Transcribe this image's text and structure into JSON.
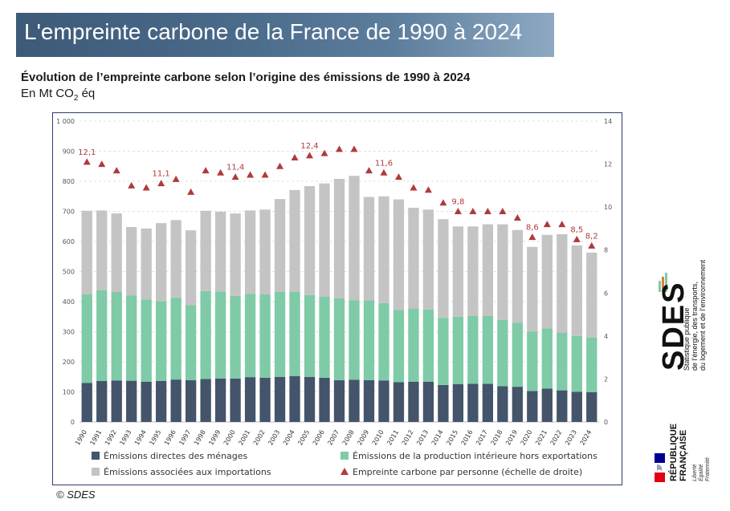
{
  "header": {
    "banner_title": "L'empreinte carbone de la France de 1990 à 2024",
    "subtitle": "Évolution de l’empreinte carbone selon l’origine des émissions de 1990 à 2024",
    "unit_prefix": "En Mt CO",
    "unit_sub": "2",
    "unit_suffix": " éq"
  },
  "credit": "© SDES",
  "logos": {
    "sdes_text": "SDES",
    "sdes_caption": [
      "Statistique publique",
      "de l’énergie, des transports,",
      "du logement et de l’environnement"
    ],
    "rf_text": [
      "RÉPUBLIQUE",
      "FRANÇAISE"
    ],
    "rf_motto": [
      "Liberté",
      "Égalité",
      "Fraternité"
    ]
  },
  "colors": {
    "menages": "#44546a",
    "production": "#7fcaa7",
    "importations": "#c4c4c4",
    "per_capita": "#b03a3a"
  },
  "chart_data": {
    "type": "bar",
    "stacked": true,
    "categories": [
      "1990",
      "1991",
      "1992",
      "1993",
      "1994",
      "1995",
      "1996",
      "1997",
      "1998",
      "1999",
      "2000",
      "2001",
      "2002",
      "2003",
      "2004",
      "2005",
      "2006",
      "2007",
      "2008",
      "2009",
      "2010",
      "2011",
      "2012",
      "2013",
      "2014",
      "2015",
      "2016",
      "2017",
      "2018",
      "2019",
      "2020",
      "2021",
      "2022",
      "2023",
      "2024"
    ],
    "series": [
      {
        "name": "Émissions directes des ménages",
        "color_key": "menages",
        "values": [
          130,
          136,
          138,
          137,
          134,
          136,
          141,
          139,
          143,
          144,
          144,
          149,
          147,
          150,
          152,
          150,
          147,
          139,
          140,
          139,
          138,
          132,
          134,
          134,
          123,
          126,
          127,
          127,
          119,
          117,
          103,
          111,
          105,
          100,
          99
        ]
      },
      {
        "name": "Émissions de la production intérieure hors exportations",
        "color_key": "production",
        "values": [
          295,
          302,
          294,
          283,
          273,
          266,
          272,
          249,
          292,
          290,
          275,
          277,
          277,
          283,
          280,
          272,
          270,
          272,
          265,
          266,
          257,
          240,
          242,
          240,
          223,
          224,
          225,
          226,
          220,
          213,
          197,
          200,
          191,
          186,
          182
        ]
      },
      {
        "name": "Émissions associées aux importations",
        "color_key": "importations",
        "values": [
          277,
          265,
          261,
          228,
          236,
          259,
          258,
          249,
          267,
          265,
          274,
          277,
          282,
          308,
          339,
          362,
          376,
          397,
          413,
          343,
          355,
          368,
          336,
          332,
          328,
          300,
          298,
          304,
          318,
          308,
          282,
          311,
          328,
          301,
          282
        ]
      }
    ],
    "per_capita": {
      "name": "Empreinte carbone par personne (échelle de droite)",
      "values": [
        12.1,
        12.0,
        11.7,
        11.0,
        10.9,
        11.1,
        11.3,
        10.7,
        11.7,
        11.6,
        11.4,
        11.5,
        11.5,
        11.9,
        12.3,
        12.4,
        12.5,
        12.7,
        12.7,
        11.7,
        11.6,
        11.4,
        10.9,
        10.8,
        10.2,
        9.8,
        9.8,
        9.8,
        9.8,
        9.5,
        8.6,
        9.2,
        9.2,
        8.5,
        8.2
      ],
      "labels": {
        "1990": "12,1",
        "1995": "11,1",
        "2000": "11,4",
        "2005": "12,4",
        "2010": "11,6",
        "2015": "9,8",
        "2020": "8,6",
        "2023": "8,5",
        "2024": "8,2"
      }
    },
    "y_left": {
      "min": 0,
      "max": 1000,
      "step": 100,
      "tick_labels": [
        "0",
        "100",
        "200",
        "300",
        "400",
        "500",
        "600",
        "700",
        "800",
        "900",
        "1 000"
      ]
    },
    "y_right": {
      "min": 0,
      "max": 14,
      "step": 2,
      "tick_labels": [
        "0",
        "2",
        "4",
        "6",
        "8",
        "10",
        "12",
        "14"
      ]
    },
    "grid": true,
    "legend_position": "bottom",
    "legend": [
      "Émissions directes des ménages",
      "Émissions de la production intérieure hors exportations",
      "Émissions associées aux importations",
      "Empreinte carbone par personne (échelle de droite)"
    ]
  }
}
